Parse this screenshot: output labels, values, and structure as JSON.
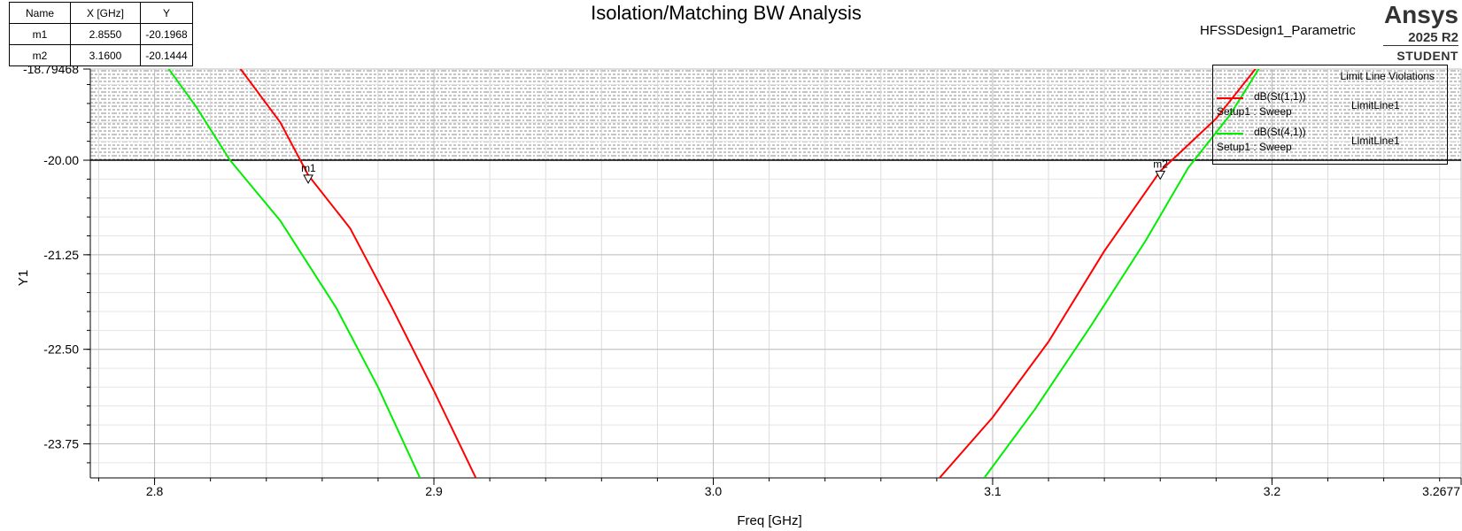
{
  "chart_data": {
    "type": "line",
    "title": "Isolation/Matching BW Analysis",
    "design_label": "HFSSDesign1_Parametric",
    "brand": {
      "name": "Ansys",
      "version": "2025 R2",
      "edition": "STUDENT"
    },
    "xlabel": "Freq [GHz]",
    "ylabel": "Y1",
    "xlim": [
      2.777,
      3.2677
    ],
    "ylim": [
      -24.2,
      -18.79468
    ],
    "x_ticks": [
      "2.8",
      "2.9",
      "3.0",
      "3.1",
      "3.2",
      "3.2677"
    ],
    "x_tick_values": [
      2.8,
      2.9,
      3.0,
      3.1,
      3.2,
      3.2677
    ],
    "y_ticks": [
      "-18.79468",
      "-20.00",
      "-21.25",
      "-22.50",
      "-23.75"
    ],
    "y_tick_values": [
      -18.79468,
      -20.0,
      -21.25,
      -22.5,
      -23.75
    ],
    "grid": true,
    "limit_line": {
      "name": "LimitLine1",
      "y": -20.0
    },
    "series": [
      {
        "name": "dB(St(1,1))",
        "setup": "Setup1 : Sweep",
        "color": "#ff0000",
        "x": [
          2.8307,
          2.845,
          2.855,
          2.87,
          2.885,
          2.9,
          2.915
        ],
        "y": [
          -18.79,
          -19.5,
          -20.1968,
          -20.9,
          -21.95,
          -23.05,
          -24.2
        ],
        "x2": [
          3.081,
          3.1,
          3.12,
          3.14,
          3.16,
          3.18,
          3.195
        ],
        "y2": [
          -24.2,
          -23.4,
          -22.4,
          -21.2,
          -20.1444,
          -19.45,
          -18.75
        ]
      },
      {
        "name": "dB(St(4,1))",
        "setup": "Setup1 : Sweep",
        "color": "#00ee00",
        "x": [
          2.805,
          2.815,
          2.827,
          2.845,
          2.865,
          2.88,
          2.895
        ],
        "y": [
          -18.79,
          -19.3,
          -20.0,
          -20.8,
          -21.95,
          -23.0,
          -24.2
        ],
        "x2": [
          3.097,
          3.115,
          3.135,
          3.155,
          3.17,
          3.185,
          3.196
        ],
        "y2": [
          -24.2,
          -23.3,
          -22.2,
          -21.05,
          -20.1,
          -19.4,
          -18.75
        ]
      }
    ],
    "markers": {
      "headers": [
        "Name",
        "X [GHz]",
        "Y"
      ],
      "rows": [
        [
          "m1",
          "2.8550",
          "-20.1968"
        ],
        [
          "m2",
          "3.1600",
          "-20.1444"
        ]
      ],
      "points": [
        {
          "name": "m1",
          "x": 2.855,
          "y": -20.1968
        },
        {
          "name": "m2",
          "x": 3.16,
          "y": -20.1444
        }
      ]
    },
    "legend": {
      "header": "Limit Line Violations",
      "limit_label": "LimitLine1",
      "placement": "top-right"
    }
  }
}
